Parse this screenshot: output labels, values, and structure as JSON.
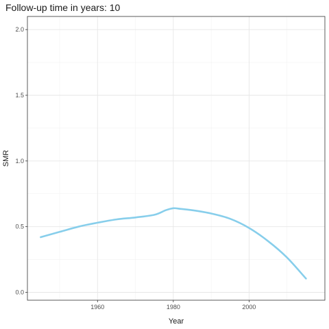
{
  "chart_data": {
    "type": "line",
    "title": "Follow-up time in years: 10",
    "xlabel": "Year",
    "ylabel": "SMR",
    "xlim": [
      1941.5,
      2020
    ],
    "ylim": [
      -0.06,
      2.1
    ],
    "x_ticks": [
      1960,
      1980,
      2000
    ],
    "x_minor": [
      1950,
      1970,
      1990,
      2010
    ],
    "y_ticks": [
      0.0,
      0.5,
      1.0,
      1.5,
      2.0
    ],
    "y_tick_labels": [
      "0.0",
      "0.5",
      "1.0",
      "1.5",
      "2.0"
    ],
    "y_minor": [
      0.25,
      0.75,
      1.25,
      1.75
    ],
    "grid": true,
    "panel_border": true,
    "series": [
      {
        "color": "#87CEEB",
        "x": [
          1945,
          1950,
          1955,
          1960,
          1965,
          1970,
          1975,
          1978,
          1980,
          1982,
          1985,
          1990,
          1995,
          2000,
          2005,
          2010,
          2015
        ],
        "y": [
          0.42,
          0.46,
          0.5,
          0.53,
          0.555,
          0.57,
          0.59,
          0.625,
          0.64,
          0.635,
          0.625,
          0.6,
          0.56,
          0.49,
          0.39,
          0.265,
          0.105
        ]
      }
    ]
  }
}
